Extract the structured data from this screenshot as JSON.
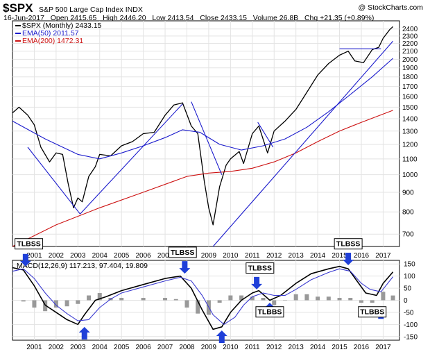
{
  "header": {
    "symbol": "$SPX",
    "name": "S&P 500 Large Cap Index",
    "exchange": "INDX",
    "watermark": "@ StockCharts.com",
    "date": "16-Jun-2017",
    "open_label": "Open",
    "open": "2415.65",
    "high_label": "High",
    "high": "2446.20",
    "low_label": "Low",
    "low": "2413.54",
    "close_label": "Close",
    "close": "2433.15",
    "volume_label": "Volume",
    "volume": "26.8B",
    "chg_label": "Chg",
    "chg": "+21.35 (+0.89%)"
  },
  "legend": {
    "price": "$SPX (Monthly) 2433.15",
    "ema50": "EMA(50) 2011.57",
    "ema200": "EMA(200) 1472.31"
  },
  "macd_label": "MACD(12,26,9) 117.213, 97.404, 19.809",
  "colors": {
    "price": "#000000",
    "ema50": "#1a1acc",
    "ema200": "#cc1111",
    "trendline": "#1a1acc",
    "macd": "#000000",
    "signal": "#3b3bd0",
    "histogram": "#999999",
    "arrow": "#1f3fd8",
    "grid": "#e3e3e3"
  },
  "annotations": [
    {
      "label": "TLBSS",
      "x": 2000.75,
      "panel": "macd",
      "y": 140,
      "box": "above"
    },
    {
      "label": "TLBSS",
      "x": 2007.8,
      "panel": "macd",
      "y": 105,
      "box": "above"
    },
    {
      "label": "TLBSS",
      "x": 2011.35,
      "panel": "macd",
      "y": 40,
      "box": "above"
    },
    {
      "label": "TLBSS",
      "x": 2015.4,
      "panel": "macd",
      "y": 140,
      "box": "above"
    },
    {
      "label": "TLBBS",
      "x": 2011.8,
      "panel": "macd",
      "y": -15,
      "box": "below"
    },
    {
      "label": "TLBBS",
      "x": 2016.5,
      "panel": "macd",
      "y": -15,
      "box": "below"
    }
  ],
  "arrows": [
    {
      "x": 2000.6,
      "panel": "macd",
      "dir": "down",
      "y": 140
    },
    {
      "x": 2003.3,
      "panel": "macd",
      "dir": "up",
      "y": -110
    },
    {
      "x": 2007.9,
      "panel": "macd",
      "dir": "down",
      "y": 110
    },
    {
      "x": 2009.6,
      "panel": "macd",
      "dir": "up",
      "y": -125
    },
    {
      "x": 2011.2,
      "panel": "macd",
      "dir": "down",
      "y": 45
    },
    {
      "x": 2011.8,
      "panel": "macd",
      "dir": "up",
      "y": -10
    },
    {
      "x": 2015.4,
      "panel": "macd",
      "dir": "down",
      "y": 145
    },
    {
      "x": 2016.9,
      "panel": "macd",
      "dir": "up",
      "y": -25
    }
  ],
  "chart_data": {
    "type": "line",
    "price_panel": {
      "y_scale": "log",
      "ylim": [
        650,
        2520
      ],
      "yticks": [
        700,
        800,
        900,
        1000,
        1100,
        1200,
        1300,
        1400,
        1500,
        1600,
        1700,
        1800,
        1900,
        2000,
        2100,
        2200,
        2300,
        2400
      ],
      "series": [
        {
          "name": "$SPX (Monthly)",
          "x": [
            2000.0,
            2000.3,
            2000.7,
            2001.0,
            2001.3,
            2001.7,
            2002.0,
            2002.3,
            2002.55,
            2002.8,
            2003.0,
            2003.2,
            2003.5,
            2003.8,
            2004.0,
            2004.5,
            2005.0,
            2005.5,
            2006.0,
            2006.5,
            2007.0,
            2007.4,
            2007.8,
            2008.2,
            2008.5,
            2008.8,
            2009.0,
            2009.2,
            2009.5,
            2009.8,
            2010.0,
            2010.4,
            2010.6,
            2011.0,
            2011.3,
            2011.7,
            2012.0,
            2012.5,
            2013.0,
            2013.5,
            2014.0,
            2014.5,
            2015.0,
            2015.4,
            2015.7,
            2016.1,
            2016.5,
            2016.8,
            2017.0,
            2017.3,
            2017.45
          ],
          "values": [
            1450,
            1500,
            1430,
            1350,
            1180,
            1080,
            1140,
            1130,
            950,
            820,
            870,
            850,
            990,
            1050,
            1130,
            1120,
            1190,
            1220,
            1280,
            1290,
            1430,
            1520,
            1540,
            1340,
            1280,
            960,
            820,
            740,
            930,
            1060,
            1100,
            1150,
            1070,
            1280,
            1340,
            1140,
            1300,
            1380,
            1480,
            1640,
            1820,
            1950,
            2050,
            2100,
            1980,
            1960,
            2120,
            2150,
            2270,
            2390,
            2433
          ]
        },
        {
          "name": "EMA(50)",
          "x": [
            2000.0,
            2001.5,
            2003.0,
            2004.0,
            2005.0,
            2006.0,
            2007.0,
            2007.8,
            2008.6,
            2009.5,
            2010.5,
            2011.5,
            2012.5,
            2013.5,
            2014.5,
            2015.5,
            2016.5,
            2017.45
          ],
          "values": [
            1380,
            1240,
            1130,
            1100,
            1140,
            1190,
            1250,
            1310,
            1290,
            1200,
            1160,
            1190,
            1240,
            1330,
            1460,
            1620,
            1800,
            2011.57
          ]
        },
        {
          "name": "EMA(200)",
          "x": [
            2000.0,
            2002.0,
            2004.0,
            2006.0,
            2008.0,
            2009.0,
            2010.0,
            2011.0,
            2012.0,
            2013.0,
            2014.0,
            2015.0,
            2016.0,
            2017.45
          ],
          "values": [
            650,
            740,
            820,
            900,
            990,
            1010,
            1020,
            1040,
            1080,
            1140,
            1220,
            1300,
            1370,
            1472.31
          ]
        }
      ],
      "trendlines": [
        {
          "x": [
            2000.7,
            2003.1
          ],
          "values": [
            1180,
            790
          ]
        },
        {
          "x": [
            2003.1,
            2007.8
          ],
          "values": [
            790,
            1530
          ]
        },
        {
          "x": [
            2008.2,
            2009.6
          ],
          "values": [
            1550,
            1000
          ]
        },
        {
          "x": [
            2009.2,
            2017.45
          ],
          "values": [
            650,
            2230
          ]
        },
        {
          "x": [
            2011.25,
            2011.95
          ],
          "values": [
            1370,
            1180
          ]
        },
        {
          "x": [
            2015.0,
            2016.9
          ],
          "values": [
            2130,
            2130
          ]
        }
      ]
    },
    "macd_panel": {
      "ylim": [
        -165,
        165
      ],
      "yticks": [
        -150,
        -100,
        -50,
        0,
        50,
        100,
        150
      ],
      "series": [
        {
          "name": "MACD",
          "x": [
            2000.0,
            2000.5,
            2001.0,
            2001.5,
            2002.0,
            2002.5,
            2003.0,
            2003.3,
            2003.8,
            2004.3,
            2005.0,
            2006.0,
            2007.0,
            2007.7,
            2008.2,
            2008.7,
            2009.2,
            2009.6,
            2010.0,
            2010.5,
            2011.0,
            2011.3,
            2011.8,
            2012.3,
            2013.0,
            2013.7,
            2014.5,
            2015.0,
            2015.4,
            2015.8,
            2016.2,
            2016.7,
            2017.0,
            2017.45
          ],
          "values": [
            135,
            125,
            60,
            -20,
            -50,
            -80,
            -100,
            -60,
            0,
            15,
            40,
            65,
            90,
            100,
            50,
            -40,
            -120,
            -110,
            -50,
            0,
            30,
            40,
            0,
            20,
            70,
            110,
            130,
            140,
            130,
            80,
            30,
            20,
            70,
            117.2
          ]
        },
        {
          "name": "Signal",
          "x": [
            2000.0,
            2000.5,
            2001.0,
            2001.5,
            2002.0,
            2002.5,
            2003.0,
            2003.5,
            2004.0,
            2004.5,
            2005.0,
            2006.0,
            2007.0,
            2007.7,
            2008.2,
            2008.7,
            2009.2,
            2009.7,
            2010.2,
            2010.6,
            2011.0,
            2011.5,
            2012.0,
            2012.5,
            2013.0,
            2013.7,
            2014.5,
            2015.0,
            2015.5,
            2016.0,
            2016.4,
            2016.9,
            2017.45
          ],
          "values": [
            120,
            130,
            90,
            30,
            -20,
            -55,
            -85,
            -80,
            -30,
            5,
            30,
            55,
            80,
            95,
            80,
            20,
            -60,
            -100,
            -70,
            -20,
            15,
            30,
            20,
            20,
            45,
            85,
            115,
            130,
            120,
            70,
            45,
            35,
            97.4
          ]
        }
      ],
      "histogram": {
        "x": [
          2000.5,
          2001.0,
          2001.5,
          2002.0,
          2002.5,
          2003.0,
          2003.5,
          2004.0,
          2004.5,
          2005.0,
          2006.0,
          2007.0,
          2007.5,
          2008.0,
          2008.5,
          2009.0,
          2009.5,
          2010.0,
          2010.5,
          2011.0,
          2011.5,
          2012.0,
          2012.5,
          2013.0,
          2013.5,
          2014.0,
          2014.5,
          2015.0,
          2015.5,
          2016.0,
          2016.5,
          2017.0,
          2017.45
        ],
        "values": [
          -5,
          -30,
          -45,
          -30,
          -25,
          -15,
          20,
          30,
          10,
          10,
          10,
          10,
          5,
          -30,
          -55,
          -60,
          -10,
          20,
          20,
          15,
          10,
          -20,
          0,
          25,
          25,
          15,
          15,
          10,
          10,
          -10,
          -10,
          35,
          19.8
        ]
      }
    },
    "x_axis": {
      "xlim": [
        2000.0,
        2017.75
      ],
      "ticks": [
        "2001",
        "2002",
        "2003",
        "2004",
        "2005",
        "2006",
        "2007",
        "2008",
        "2009",
        "2010",
        "2011",
        "2012",
        "2013",
        "2014",
        "2015",
        "2016",
        "2017"
      ]
    },
    "grid": true
  }
}
